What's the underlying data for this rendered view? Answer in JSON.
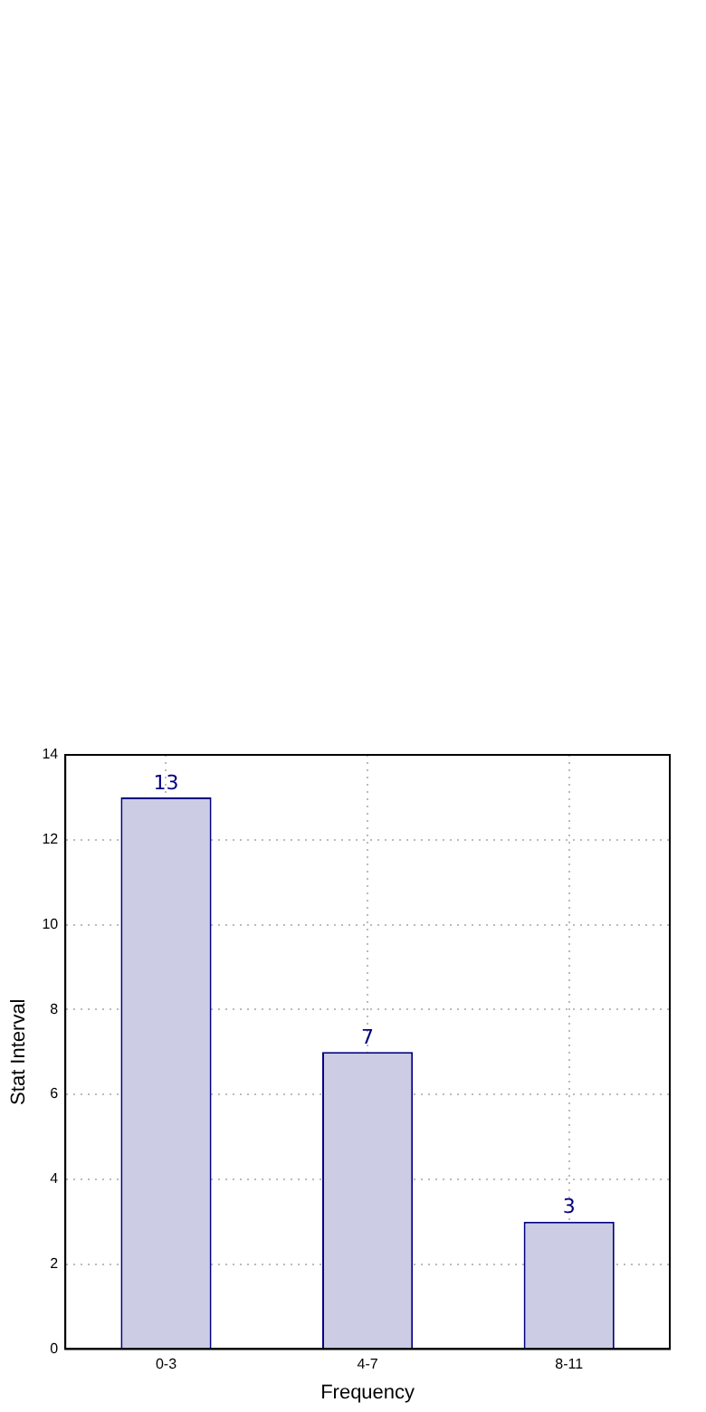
{
  "chart_data": {
    "type": "bar",
    "xlabel": "Frequency",
    "ylabel": "Stat Interval",
    "categories": [
      "0-3",
      "4-7",
      "8-11"
    ],
    "values": [
      13,
      7,
      3
    ],
    "color": "#cccce5",
    "ylim": [
      0,
      14
    ],
    "yticks": [
      0,
      2,
      4,
      6,
      8,
      10,
      12,
      14
    ],
    "grid": true,
    "data_labels": true
  }
}
